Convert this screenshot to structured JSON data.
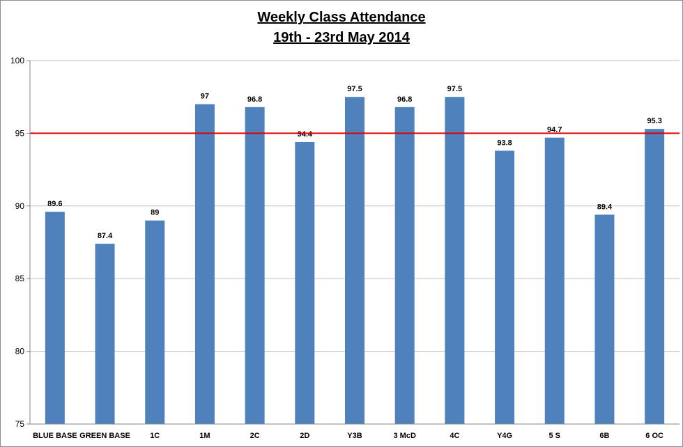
{
  "chart_data": {
    "type": "bar",
    "title": "Weekly Class Attendance",
    "subtitle": "19th - 23rd May 2014",
    "categories": [
      "BLUE BASE",
      "GREEN BASE",
      "1C",
      "1M",
      "2C",
      "2D",
      "Y3B",
      "3 McD",
      "4C",
      "Y4G",
      "5 S",
      "6B",
      "6 OC"
    ],
    "values": [
      89.6,
      87.4,
      89,
      97,
      96.8,
      94.4,
      97.5,
      96.8,
      97.5,
      93.8,
      94.7,
      89.4,
      95.3
    ],
    "value_labels": [
      "89.6",
      "87.4",
      "89",
      "97",
      "96.8",
      "94.4",
      "97.5",
      "96.8",
      "97.5",
      "93.8",
      "94.7",
      "89.4",
      "95.3"
    ],
    "ylim": [
      75,
      100
    ],
    "yticks": [
      75,
      80,
      85,
      90,
      95,
      100
    ],
    "target_line": 95,
    "grid": true,
    "legend": "none",
    "xlabel": "",
    "ylabel": "",
    "colors": {
      "bar": "#4f81bd",
      "target_line": "#e00000",
      "grid": "#c0c0c0",
      "axis": "#868686"
    }
  }
}
